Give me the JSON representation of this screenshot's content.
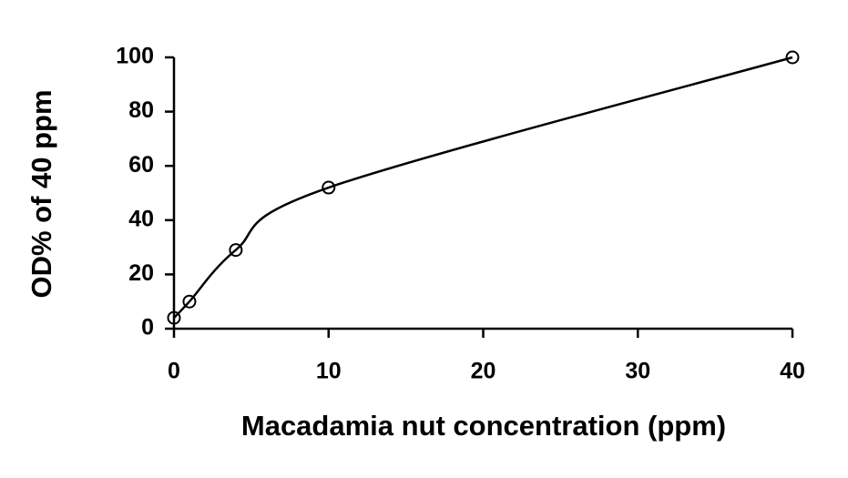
{
  "chart_data": {
    "type": "line",
    "x_label": "Macadamia nut concentration (ppm)",
    "y_label": "OD% of 40 ppm",
    "x": [
      0,
      1,
      4,
      10,
      40
    ],
    "values": [
      4,
      10,
      29,
      52,
      100
    ],
    "color": "#000000",
    "marker": "open-circle",
    "smooth": true,
    "xlim": [
      0,
      40
    ],
    "xticks": [
      0,
      10,
      20,
      30,
      40
    ],
    "ylim": [
      0,
      100
    ],
    "yticks": [
      0,
      20,
      40,
      60,
      80,
      100
    ],
    "grid": false
  }
}
